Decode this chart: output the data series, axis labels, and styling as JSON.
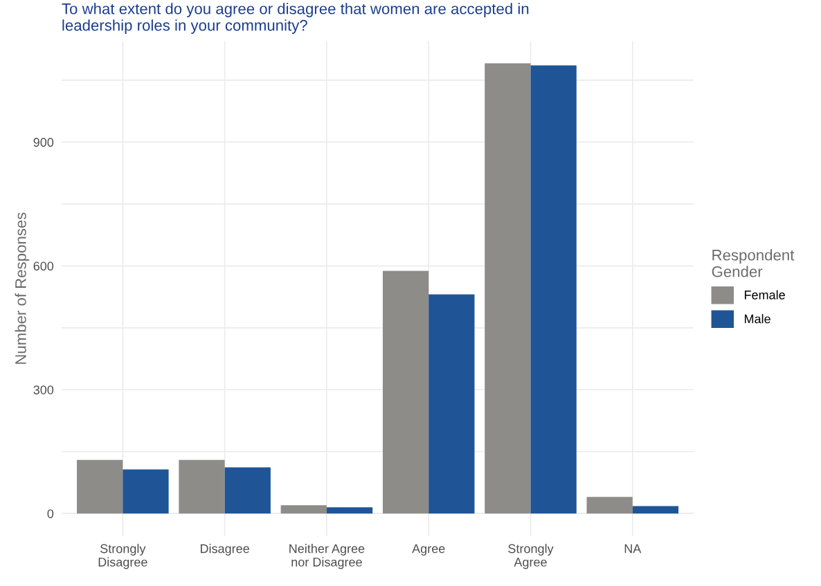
{
  "chart_data": {
    "type": "bar",
    "title": "To what extent do you agree or disagree that women are accepted in\nleadership roles in your community?",
    "ylabel": "Number of Responses",
    "legend_title": "Respondent\nGender",
    "categories": [
      "Strongly\nDisagree",
      "Disagree",
      "Neither Agree\nnor Disagree",
      "Agree",
      "Strongly\nAgree",
      "NA"
    ],
    "series": [
      {
        "name": "Female",
        "color": "#8e8c89",
        "values": [
          130,
          130,
          20,
          588,
          1091,
          40
        ]
      },
      {
        "name": "Male",
        "color": "#1f5597",
        "values": [
          107,
          112,
          15,
          531,
          1086,
          18
        ]
      }
    ],
    "ylim": [
      -55,
      1145
    ],
    "yticks": [
      0,
      {
        "value": 150,
        "label": null
      },
      300,
      {
        "value": 450,
        "label": null
      },
      600,
      {
        "value": 750,
        "label": null
      },
      900,
      {
        "value": 1050,
        "label": null
      }
    ],
    "grid": true,
    "legend": "right"
  }
}
